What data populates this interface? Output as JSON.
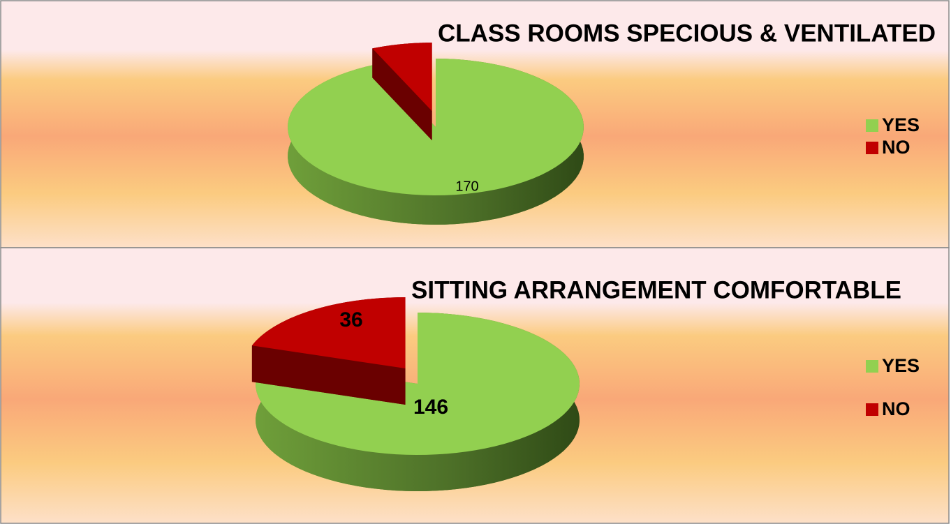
{
  "chart_data": [
    {
      "type": "pie",
      "title": "CLASS ROOMS SPECIOUS & VENTILATED",
      "categories": [
        "YES",
        "NO"
      ],
      "values": [
        170,
        12
      ],
      "value_labels": [
        "170",
        null
      ],
      "colors": [
        "#92d050",
        "#c00000"
      ],
      "legend": "right"
    },
    {
      "type": "pie",
      "title": "SITTING ARRANGEMENT COMFORTABLE",
      "categories": [
        "YES",
        "NO"
      ],
      "values": [
        146,
        36
      ],
      "colors": [
        "#92d050",
        "#c00000"
      ],
      "legend": "right"
    }
  ]
}
